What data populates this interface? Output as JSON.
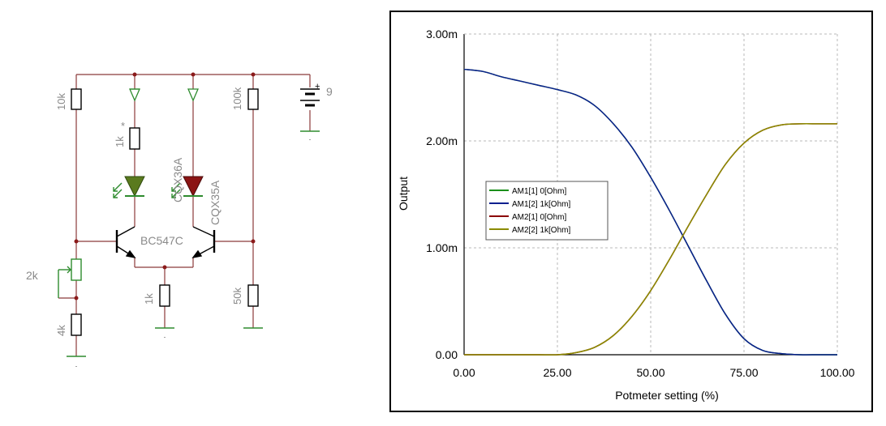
{
  "circuit": {
    "r_left_top": "10k",
    "r_led1": "1k",
    "r_led1_mark": "*",
    "led1": "CQX36A",
    "led2": "CQX35A",
    "r_right_top": "100k",
    "battery": "9",
    "battery_plus": "+",
    "transistor": "BC547C",
    "pot": "2k",
    "r_left_bottom": "4k",
    "r_emitter": "1k",
    "r_right_bottom": "50k",
    "colors": {
      "wire": "#8b3a3a",
      "led_green": "#5a7a1e",
      "led_red": "#8b1414",
      "green_wire": "#2e8b2e"
    }
  },
  "chart_data": {
    "type": "line",
    "xlabel": "Potmeter setting (%)",
    "ylabel": "Output",
    "x_ticks": [
      "0.00",
      "25.00",
      "50.00",
      "75.00",
      "100.00"
    ],
    "y_ticks": [
      "0.00",
      "1.00m",
      "2.00m",
      "3.00m"
    ],
    "xlim": [
      0,
      100
    ],
    "ylim": [
      0,
      3.0
    ],
    "y_unit": "m",
    "grid": true,
    "legend_position": "middle-left",
    "x": [
      0,
      5,
      10,
      15,
      20,
      25,
      30,
      35,
      40,
      45,
      50,
      55,
      60,
      65,
      70,
      75,
      80,
      85,
      90,
      95,
      100
    ],
    "series": [
      {
        "name": "AM1[1]  0[Ohm]",
        "color": "#1a8f1a",
        "values": [
          2.67,
          2.65,
          2.6,
          2.56,
          2.52,
          2.48,
          2.43,
          2.33,
          2.16,
          1.94,
          1.66,
          1.35,
          1.02,
          0.69,
          0.38,
          0.15,
          0.04,
          0.01,
          0.0,
          0.0,
          0.0
        ]
      },
      {
        "name": "AM1[2]  1k[Ohm]",
        "color": "#0a1f8f",
        "values": [
          2.67,
          2.65,
          2.6,
          2.56,
          2.52,
          2.48,
          2.43,
          2.33,
          2.16,
          1.94,
          1.66,
          1.35,
          1.02,
          0.69,
          0.38,
          0.15,
          0.04,
          0.01,
          0.0,
          0.0,
          0.0
        ]
      },
      {
        "name": "AM2[1]  0[Ohm]",
        "color": "#8b0000",
        "values": [
          0.0,
          0.0,
          0.0,
          0.0,
          0.0,
          0.0,
          0.02,
          0.07,
          0.18,
          0.36,
          0.6,
          0.89,
          1.2,
          1.5,
          1.78,
          1.98,
          2.1,
          2.15,
          2.16,
          2.16,
          2.16
        ]
      },
      {
        "name": "AM2[2]  1k[Ohm]",
        "color": "#8b8b00",
        "values": [
          0.0,
          0.0,
          0.0,
          0.0,
          0.0,
          0.0,
          0.02,
          0.07,
          0.18,
          0.36,
          0.6,
          0.89,
          1.2,
          1.5,
          1.78,
          1.98,
          2.1,
          2.15,
          2.16,
          2.16,
          2.16
        ]
      }
    ]
  }
}
